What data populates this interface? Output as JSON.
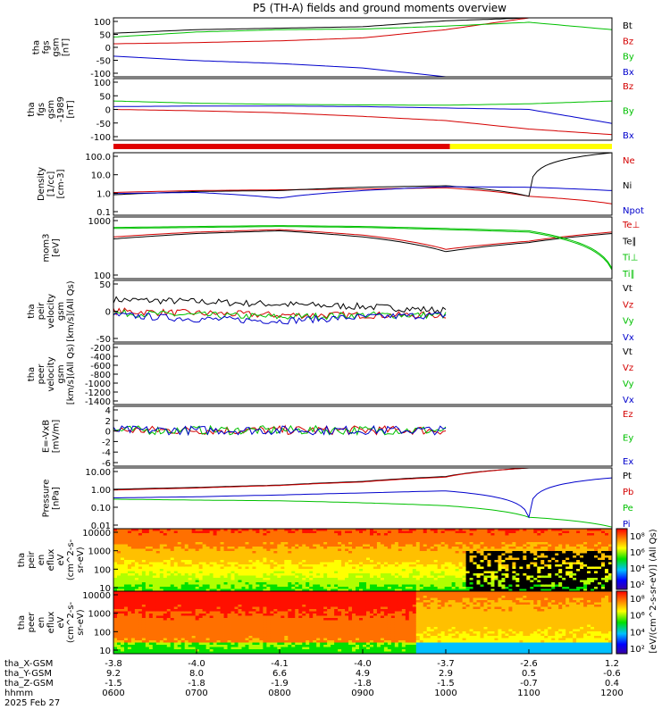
{
  "title": "P5 (TH-A) fields and ground moments overview",
  "panels": [
    {
      "id": "fgs-gsm",
      "ylabel": [
        "tha",
        "fgs",
        "gsm",
        "[nT]"
      ],
      "yticks": [
        "100",
        "50",
        "0",
        "-50",
        "-100"
      ],
      "legend": [
        {
          "text": "Bt",
          "color": "#000000"
        },
        {
          "text": "Bz",
          "color": "#d40000"
        },
        {
          "text": "By",
          "color": "#00c000"
        },
        {
          "text": "Bx",
          "color": "#0000cc"
        }
      ]
    },
    {
      "id": "fgs-gsm-dc",
      "ylabel": [
        "tha",
        "fgs",
        "gsm",
        "-1989",
        "[nT]"
      ],
      "yticks": [
        "100",
        "50",
        "0",
        "-50",
        "-100"
      ],
      "legend": [
        {
          "text": "Bz",
          "color": "#d40000"
        },
        {
          "text": "By",
          "color": "#00c000"
        },
        {
          "text": "Bx",
          "color": "#0000cc"
        }
      ]
    },
    {
      "id": "density",
      "ylabel": [
        "Density",
        "[1/cc]",
        "[cm-3]"
      ],
      "yticks": [
        "100.0",
        "10.0",
        "1.0",
        "0.1"
      ],
      "legend": [
        {
          "text": "Ne",
          "color": "#d40000"
        },
        {
          "text": "Ni",
          "color": "#000000"
        },
        {
          "text": "Npot",
          "color": "#0000cc"
        }
      ]
    },
    {
      "id": "temperature",
      "ylabel": [
        "mom3",
        "[eV]"
      ],
      "yticks": [
        "1000",
        "100"
      ],
      "legend": [
        {
          "text": "Te⊥",
          "color": "#d40000"
        },
        {
          "text": "Te∥",
          "color": "#000000"
        },
        {
          "text": "Ti⊥",
          "color": "#00c000"
        },
        {
          "text": "Ti∥",
          "color": "#00c000"
        }
      ]
    },
    {
      "id": "peir-velocity",
      "ylabel": [
        "tha",
        "peir",
        "velocity",
        "gsm",
        "[km/s](All Qs)"
      ],
      "yticks": [
        "50",
        "0",
        "-50"
      ],
      "legend": [
        {
          "text": "Vt",
          "color": "#000000"
        },
        {
          "text": "Vz",
          "color": "#d40000"
        },
        {
          "text": "Vy",
          "color": "#00c000"
        },
        {
          "text": "Vx",
          "color": "#0000cc"
        }
      ]
    },
    {
      "id": "peer-velocity",
      "ylabel": [
        "tha",
        "peer",
        "velocity",
        "gsm",
        "[km/s](All Qs)"
      ],
      "yticks": [
        "-200",
        "-400",
        "-600",
        "-800",
        "-1000",
        "-1200",
        "-1400"
      ],
      "legend": [
        {
          "text": "Vt",
          "color": "#000000"
        },
        {
          "text": "Vz",
          "color": "#d40000"
        },
        {
          "text": "Vy",
          "color": "#00c000"
        },
        {
          "text": "Vx",
          "color": "#0000cc"
        }
      ]
    },
    {
      "id": "efield",
      "ylabel": [
        "E=-VxB",
        "[mV/m]"
      ],
      "yticks": [
        "4",
        "2",
        "0",
        "-2",
        "-4",
        "-6"
      ],
      "legend": [
        {
          "text": "Ez",
          "color": "#d40000"
        },
        {
          "text": "Ey",
          "color": "#00c000"
        },
        {
          "text": "Ex",
          "color": "#0000cc"
        }
      ]
    },
    {
      "id": "pressure",
      "ylabel": [
        "Pressure",
        "[nPa]"
      ],
      "yticks": [
        "10.00",
        "1.00",
        "0.10",
        "0.01"
      ],
      "legend": [
        {
          "text": "Pt",
          "color": "#000000"
        },
        {
          "text": "Pb",
          "color": "#d40000"
        },
        {
          "text": "Pe",
          "color": "#00c000"
        },
        {
          "text": "Pi",
          "color": "#0000cc"
        }
      ]
    },
    {
      "id": "peir-eflux",
      "ylabel": [
        "tha",
        "peir",
        "en",
        "eflux",
        "eV",
        "(cm^2-s-",
        "sr-eV)"
      ],
      "yticks": [
        "10000",
        "1000",
        "100",
        "10"
      ]
    },
    {
      "id": "peer-eflux",
      "ylabel": [
        "tha",
        "peer",
        "en",
        "eflux",
        "eV",
        "(cm^2-s-",
        "sr-eV)"
      ],
      "yticks": [
        "10000",
        "1000",
        "100",
        "10"
      ]
    }
  ],
  "colorbar": {
    "label": "[eV/(cm^2-s-sr-eV)] (All Qs)",
    "ticks_top": [
      "10⁸",
      "10⁶",
      "10⁴",
      "10²"
    ],
    "ticks_bottom": [
      "10⁸",
      "10⁶",
      "10⁴",
      "10²"
    ]
  },
  "axis": {
    "rows": [
      {
        "label": "tha_X-GSM",
        "values": [
          "-3.8",
          "-4.0",
          "-4.1",
          "-4.0",
          "-3.7",
          "-2.6",
          "1.2"
        ]
      },
      {
        "label": "tha_Y-GSM",
        "values": [
          "9.2",
          "8.0",
          "6.6",
          "4.9",
          "2.9",
          "0.5",
          "-0.6"
        ]
      },
      {
        "label": "tha_Z-GSM",
        "values": [
          "-1.5",
          "-1.8",
          "-1.9",
          "-1.8",
          "-1.5",
          "-0.7",
          "0.4"
        ]
      },
      {
        "label": "hhmm",
        "values": [
          "0600",
          "0700",
          "0800",
          "0900",
          "1000",
          "1100",
          "1200"
        ]
      }
    ],
    "date": "2025 Feb 27"
  },
  "chart_data": {
    "type": "line",
    "title": "P5 (TH-A) fields and ground moments overview",
    "xlabel": "hhmm",
    "x": [
      "0600",
      "0700",
      "0800",
      "0900",
      "1000",
      "1100",
      "1200"
    ],
    "mode_bar": [
      {
        "from": "0600",
        "to": "1003",
        "color": "#e00000"
      },
      {
        "from": "1003",
        "to": "1200",
        "color": "#ffff00"
      }
    ],
    "panels": [
      {
        "id": "fgs-gsm",
        "ylim": [
          -100,
          100
        ],
        "series": [
          {
            "name": "Bt",
            "color": "#000000",
            "values": [
              48,
              60,
              65,
              70,
              90,
              100,
              100
            ]
          },
          {
            "name": "Bz",
            "color": "#d40000",
            "values": [
              12,
              16,
              22,
              32,
              60,
              100,
              100
            ]
          },
          {
            "name": "By",
            "color": "#00c000",
            "values": [
              35,
              52,
              60,
              62,
              72,
              85,
              60
            ]
          },
          {
            "name": "Bx",
            "color": "#0000cc",
            "values": [
              -30,
              -45,
              -55,
              -70,
              -100,
              -100,
              -100
            ]
          }
        ]
      },
      {
        "id": "fgs-gsm-dc",
        "ylim": [
          -120,
          100
        ],
        "series": [
          {
            "name": "Bz",
            "color": "#d40000",
            "values": [
              -10,
              -15,
              -22,
              -35,
              -50,
              -80,
              -100
            ]
          },
          {
            "name": "By",
            "color": "#00c000",
            "values": [
              20,
              12,
              8,
              6,
              5,
              10,
              20
            ]
          },
          {
            "name": "Bx",
            "color": "#0000cc",
            "values": [
              0,
              2,
              2,
              0,
              -5,
              -10,
              -60
            ]
          }
        ]
      },
      {
        "id": "density",
        "ylim": [
          0.05,
          100
        ],
        "log": true,
        "series": [
          {
            "name": "Ne",
            "color": "#d40000",
            "values": [
              0.8,
              1.0,
              1.1,
              1.2,
              1.4,
              0.5,
              0.2
            ]
          },
          {
            "name": "Ni",
            "color": "#000000",
            "values": [
              0.6,
              0.9,
              1.0,
              1.5,
              1.8,
              0.5,
              100
            ]
          },
          {
            "name": "Npot",
            "color": "#0000cc",
            "values": [
              0.7,
              0.8,
              0.4,
              1.0,
              1.6,
              1.5,
              1.0
            ]
          }
        ]
      },
      {
        "id": "temperature",
        "ylim": [
          50,
          3000
        ],
        "log": true,
        "series": [
          {
            "name": "Te⊥",
            "color": "#d40000",
            "values": [
              800,
              1100,
              1300,
              900,
              350,
              600,
              1100
            ]
          },
          {
            "name": "Te∥",
            "color": "#000000",
            "values": [
              700,
              1000,
              1200,
              800,
              300,
              550,
              1000
            ]
          },
          {
            "name": "Ti⊥",
            "color": "#00c000",
            "values": [
              1500,
              1600,
              1700,
              1600,
              1400,
              1200,
              100
            ]
          },
          {
            "name": "Ti∥",
            "color": "#00c000",
            "values": [
              1400,
              1500,
              1600,
              1500,
              1300,
              1100,
              90
            ]
          }
        ]
      },
      {
        "id": "peir-velocity",
        "ylim": [
          -70,
          90
        ],
        "series": [
          {
            "name": "Vt",
            "color": "#000000",
            "values": [
              40,
              35,
              28,
              22,
              12
            ]
          },
          {
            "name": "Vz",
            "color": "#d40000",
            "values": [
              10,
              5,
              0,
              0,
              0
            ]
          },
          {
            "name": "Vy",
            "color": "#00c000",
            "values": [
              5,
              0,
              -5,
              0,
              0
            ]
          },
          {
            "name": "Vx",
            "color": "#0000cc",
            "values": [
              0,
              -10,
              -15,
              -5,
              0
            ]
          }
        ]
      },
      {
        "id": "peer-velocity",
        "ylim": [
          -1500,
          0
        ],
        "series": []
      },
      {
        "id": "efield",
        "ylim": [
          -6,
          4
        ],
        "series": [
          {
            "name": "Ez",
            "color": "#d40000",
            "values": [
              0,
              0,
              0,
              0,
              0
            ]
          },
          {
            "name": "Ey",
            "color": "#00c000",
            "values": [
              0,
              0,
              0,
              0,
              0
            ]
          },
          {
            "name": "Ex",
            "color": "#0000cc",
            "values": [
              0,
              0,
              0,
              0,
              0
            ]
          }
        ]
      },
      {
        "id": "pressure",
        "ylim": [
          0.004,
          20
        ],
        "log": true,
        "series": [
          {
            "name": "Pt",
            "color": "#000000",
            "values": [
              1,
              1.3,
              1.8,
              3,
              6,
              20,
              20
            ]
          },
          {
            "name": "Pb",
            "color": "#d40000",
            "values": [
              0.9,
              1.2,
              1.7,
              2.8,
              5.5,
              20,
              20
            ]
          },
          {
            "name": "Pe",
            "color": "#00c000",
            "values": [
              0.25,
              0.22,
              0.2,
              0.15,
              0.1,
              0.02,
              0.005
            ]
          },
          {
            "name": "Pi",
            "color": "#0000cc",
            "values": [
              0.3,
              0.35,
              0.45,
              0.6,
              0.8,
              0.02,
              5
            ]
          }
        ]
      },
      {
        "id": "peir-eflux",
        "type": "heatmap",
        "ylim": [
          8,
          20000
        ],
        "log": true
      },
      {
        "id": "peer-eflux",
        "type": "heatmap",
        "ylim": [
          8,
          20000
        ],
        "log": true
      }
    ]
  }
}
